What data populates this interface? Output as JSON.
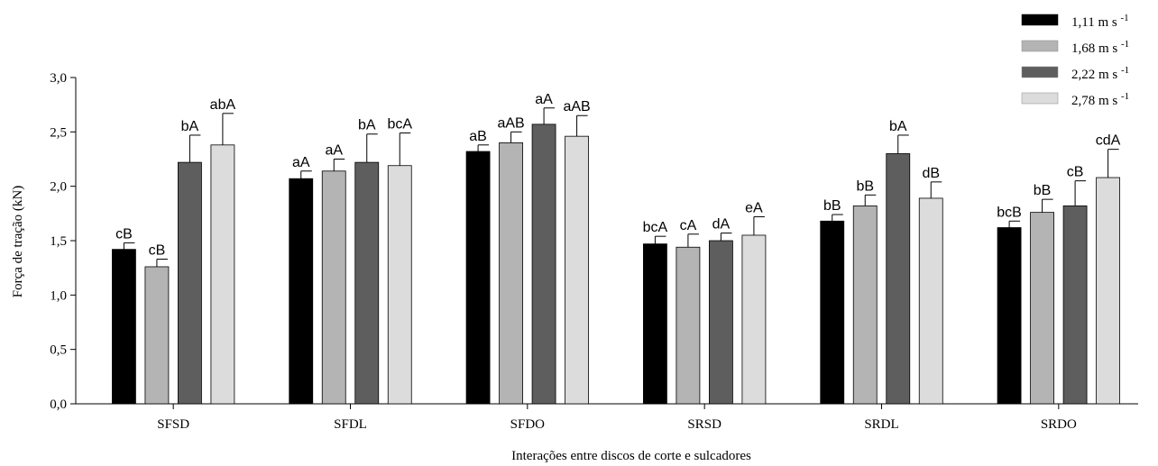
{
  "chart_data": {
    "type": "bar",
    "title": "",
    "xlabel": "Interações entre discos de corte e sulcadores",
    "ylabel": "Força de tração (kN)",
    "ylim": [
      0,
      3.0
    ],
    "yticks": [
      "0,0",
      "0,5",
      "1,0",
      "1,5",
      "2,0",
      "2,5",
      "3,0"
    ],
    "ytick_values": [
      0,
      0.5,
      1.0,
      1.5,
      2.0,
      2.5,
      3.0
    ],
    "grid": false,
    "legend_position": "top-right",
    "categories": [
      "SFSD",
      "SFDL",
      "SFDO",
      "SRSD",
      "SRDL",
      "SRDO"
    ],
    "series": [
      {
        "name": "1,11 m s",
        "unit_exponent": "-1",
        "color": "#000000",
        "values": [
          1.42,
          2.07,
          2.32,
          1.47,
          1.68,
          1.62
        ],
        "errors": [
          0.06,
          0.07,
          0.06,
          0.07,
          0.06,
          0.06
        ],
        "labels": [
          "cB",
          "aA",
          "aB",
          "bcA",
          "bB",
          "bcB"
        ]
      },
      {
        "name": "1,68 m s",
        "unit_exponent": "-1",
        "color": "#b4b4b4",
        "values": [
          1.26,
          2.14,
          2.4,
          1.44,
          1.82,
          1.76
        ],
        "errors": [
          0.07,
          0.11,
          0.1,
          0.12,
          0.1,
          0.12
        ],
        "labels": [
          "cB",
          "aA",
          "aAB",
          "cA",
          "bB",
          "bB"
        ]
      },
      {
        "name": "2,22 m s",
        "unit_exponent": "-1",
        "color": "#5e5e5e",
        "values": [
          2.22,
          2.22,
          2.57,
          1.5,
          2.3,
          1.82
        ],
        "errors": [
          0.25,
          0.26,
          0.15,
          0.07,
          0.17,
          0.23
        ],
        "labels": [
          "bA",
          "bA",
          "aA",
          "dA",
          "bA",
          "cB"
        ]
      },
      {
        "name": "2,78 m s",
        "unit_exponent": "-1",
        "color": "#dcdcdc",
        "values": [
          2.38,
          2.19,
          2.46,
          1.55,
          1.89,
          2.08
        ],
        "errors": [
          0.29,
          0.3,
          0.19,
          0.17,
          0.15,
          0.26
        ],
        "labels": [
          "abA",
          "bcA",
          "aAB",
          "eA",
          "dB",
          "cdA"
        ]
      }
    ]
  }
}
